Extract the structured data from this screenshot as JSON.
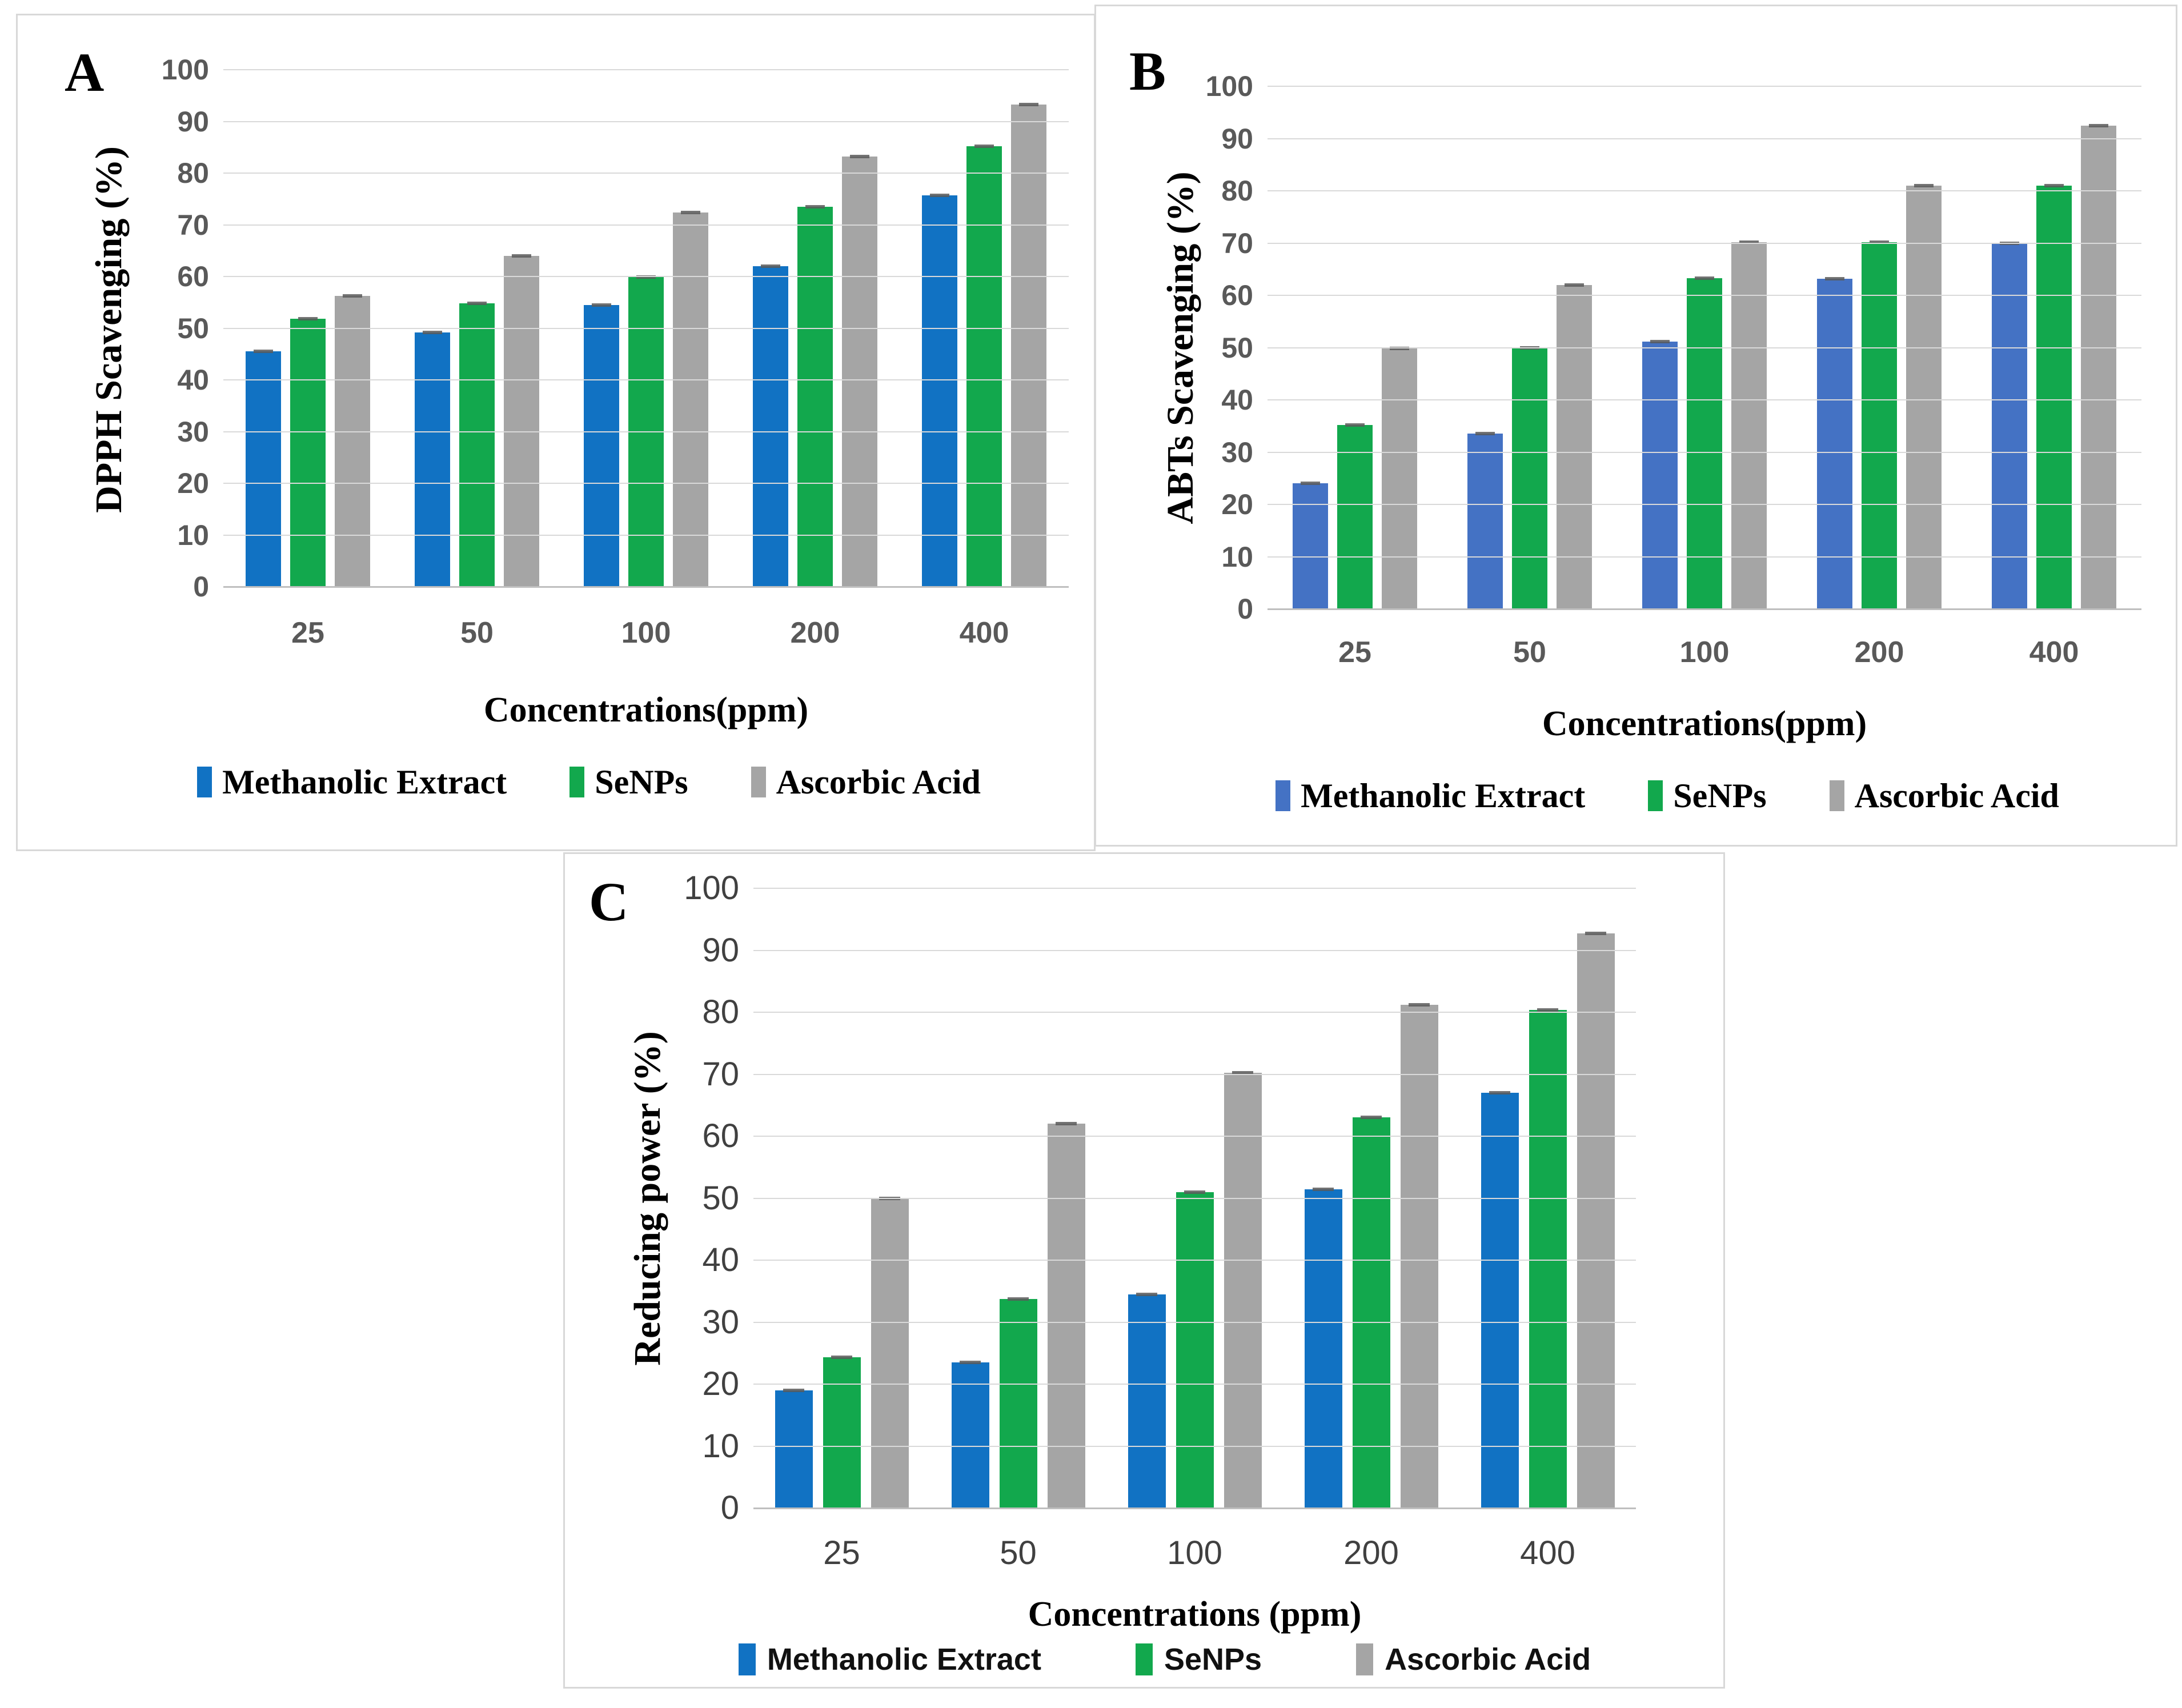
{
  "figure": {
    "background": "#ffffff",
    "panel_border_color": "#d8d8d8",
    "gridline_color": "#d9d9d9",
    "axis_line_color": "#bfbfbf",
    "tick_text_color": "#595959",
    "error_cap_color": "#5a5a5a",
    "series_colors": {
      "methanolic_extract_panels_ac": "#1172c3",
      "methanolic_extract_panel_b": "#4472c4",
      "senps": "#12a84d",
      "ascorbic_acid": "#a5a5a5"
    }
  },
  "chart_data": [
    {
      "id": "A",
      "type": "bar",
      "panel_label": "A",
      "title": "",
      "ylabel": "DPPH Scavenging (%)",
      "xlabel": "Concentrations(ppm)",
      "ylim": [
        0,
        100
      ],
      "grid": true,
      "legend_position": "bottom",
      "y_ticks": [
        0,
        10,
        20,
        30,
        40,
        50,
        60,
        70,
        80,
        90,
        100
      ],
      "categories": [
        "25",
        "50",
        "100",
        "200",
        "400"
      ],
      "series": [
        {
          "name": "Methanolic Extract",
          "color": "#1172c3",
          "values": [
            45.5,
            49.2,
            54.5,
            62.0,
            75.7
          ]
        },
        {
          "name": "SeNPs",
          "color": "#12a84d",
          "values": [
            51.8,
            54.8,
            59.9,
            73.5,
            85.2
          ]
        },
        {
          "name": "Ascorbic Acid",
          "color": "#a5a5a5",
          "values": [
            56.3,
            64.0,
            72.4,
            83.2,
            93.3
          ]
        }
      ]
    },
    {
      "id": "B",
      "type": "bar",
      "panel_label": "B",
      "title": "",
      "ylabel": "ABTs Scavenging (%)",
      "xlabel": "Concentrations(ppm)",
      "ylim": [
        0,
        100
      ],
      "grid": true,
      "legend_position": "bottom",
      "y_ticks": [
        0,
        10,
        20,
        30,
        40,
        50,
        60,
        70,
        80,
        90,
        100
      ],
      "categories": [
        "25",
        "50",
        "100",
        "200",
        "400"
      ],
      "series": [
        {
          "name": "Methanolic Extract",
          "color": "#4472c4",
          "values": [
            24.0,
            33.6,
            51.2,
            63.2,
            70.0
          ]
        },
        {
          "name": "SeNPs",
          "color": "#12a84d",
          "values": [
            35.2,
            50.0,
            63.3,
            70.2,
            81.0
          ]
        },
        {
          "name": "Ascorbic Acid",
          "color": "#a5a5a5",
          "values": [
            49.8,
            62.0,
            70.2,
            81.0,
            92.5
          ]
        }
      ]
    },
    {
      "id": "C",
      "type": "bar",
      "panel_label": "C",
      "title": "",
      "ylabel": "Reducing power (%)",
      "xlabel": "Concentrations (ppm)",
      "ylim": [
        0,
        100
      ],
      "grid": true,
      "legend_position": "bottom",
      "y_ticks": [
        0,
        10,
        20,
        30,
        40,
        50,
        60,
        70,
        80,
        90,
        100
      ],
      "categories": [
        "25",
        "50",
        "100",
        "200",
        "400"
      ],
      "series": [
        {
          "name": "Methanolic Extract",
          "color": "#1172c3",
          "values": [
            19.0,
            23.5,
            34.5,
            51.4,
            67.0
          ]
        },
        {
          "name": "SeNPs",
          "color": "#12a84d",
          "values": [
            24.3,
            33.7,
            51.0,
            63.0,
            80.4
          ]
        },
        {
          "name": "Ascorbic Acid",
          "color": "#a5a5a5",
          "values": [
            50.0,
            62.0,
            70.2,
            81.2,
            92.7
          ]
        }
      ]
    }
  ]
}
